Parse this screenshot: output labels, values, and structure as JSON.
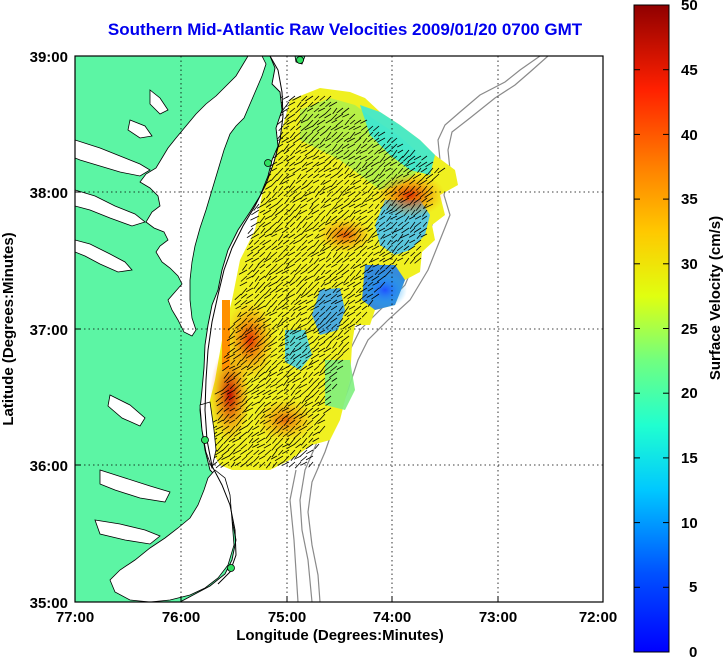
{
  "title": "Southern Mid-Atlantic Raw Velocities 2009/01/20 0700 GMT",
  "title_color": "#0000ee",
  "land_color": "#5cf5a4",
  "xlabel": "Longitude (Degrees:Minutes)",
  "ylabel": "Latitude (Degrees:Minutes)",
  "x_ticks": [
    "77:00",
    "76:00",
    "75:00",
    "74:00",
    "73:00",
    "72:00"
  ],
  "y_ticks": [
    "39:00",
    "38:00",
    "37:00",
    "36:00",
    "35:00"
  ],
  "colorbar": {
    "label": "Surface Velocity (cm/s)",
    "ticks": [
      "50",
      "45",
      "40",
      "35",
      "30",
      "25",
      "20",
      "15",
      "10",
      "5",
      "0"
    ]
  },
  "chart_data": {
    "type": "map",
    "title": "Southern Mid-Atlantic Raw Velocities 2009/01/20 0700 GMT",
    "xlabel": "Longitude (Degrees:Minutes)",
    "ylabel": "Latitude (Degrees:Minutes)",
    "xlim": [
      -77,
      -72
    ],
    "ylim": [
      35,
      39
    ],
    "grid": true,
    "colorbar_range": [
      0,
      50
    ],
    "colorbar_units": "cm/s",
    "stations": [
      {
        "lon": -74.88,
        "lat": 38.98
      },
      {
        "lon": -75.12,
        "lat": 38.22
      },
      {
        "lon": -75.75,
        "lat": 36.18
      },
      {
        "lon": -75.5,
        "lat": 35.25
      }
    ]
  }
}
